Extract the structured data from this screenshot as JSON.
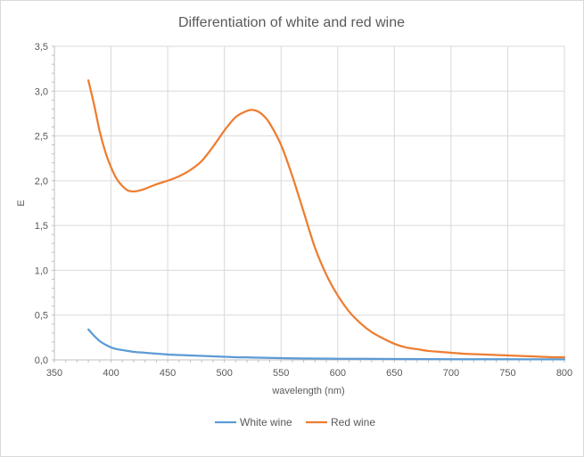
{
  "chart_data": {
    "type": "line",
    "title": "Differentiation of white and red wine",
    "xlabel": "wavelength (nm)",
    "ylabel": "E",
    "xlim": [
      350,
      800
    ],
    "ylim": [
      0,
      3.5
    ],
    "x_ticks": [
      "350",
      "400",
      "450",
      "500",
      "550",
      "600",
      "650",
      "700",
      "750",
      "800"
    ],
    "x_tick_values": [
      350,
      400,
      450,
      500,
      550,
      600,
      650,
      700,
      750,
      800
    ],
    "y_ticks": [
      "0,0",
      "0,5",
      "1,0",
      "1,5",
      "2,0",
      "2,5",
      "3,0",
      "3,5"
    ],
    "y_tick_values": [
      0,
      0.5,
      1.0,
      1.5,
      2.0,
      2.5,
      3.0,
      3.5
    ],
    "grid": true,
    "legend_position": "bottom",
    "series": [
      {
        "name": "White wine",
        "color": "#5b9bd5",
        "x": [
          380,
          385,
          390,
          395,
          400,
          405,
          410,
          420,
          430,
          440,
          450,
          460,
          470,
          480,
          490,
          500,
          510,
          520,
          530,
          540,
          550,
          560,
          570,
          580,
          600,
          620,
          650,
          700,
          750,
          800
        ],
        "y": [
          0.34,
          0.27,
          0.21,
          0.17,
          0.14,
          0.12,
          0.11,
          0.09,
          0.08,
          0.07,
          0.06,
          0.055,
          0.05,
          0.045,
          0.04,
          0.035,
          0.03,
          0.028,
          0.025,
          0.022,
          0.02,
          0.018,
          0.016,
          0.015,
          0.013,
          0.012,
          0.01,
          0.008,
          0.007,
          0.006
        ]
      },
      {
        "name": "Red wine",
        "color": "#ed7d31",
        "x": [
          380,
          385,
          390,
          395,
          400,
          405,
          410,
          415,
          420,
          425,
          430,
          440,
          450,
          460,
          470,
          480,
          490,
          500,
          510,
          520,
          525,
          530,
          535,
          540,
          550,
          560,
          570,
          580,
          590,
          600,
          610,
          620,
          630,
          640,
          650,
          660,
          670,
          680,
          690,
          700,
          710,
          720,
          730,
          740,
          750,
          760,
          770,
          780,
          790,
          800
        ],
        "y": [
          3.12,
          2.85,
          2.55,
          2.32,
          2.15,
          2.02,
          1.94,
          1.89,
          1.88,
          1.89,
          1.91,
          1.96,
          2.0,
          2.05,
          2.12,
          2.22,
          2.38,
          2.56,
          2.71,
          2.78,
          2.79,
          2.77,
          2.72,
          2.64,
          2.4,
          2.05,
          1.65,
          1.25,
          0.95,
          0.72,
          0.54,
          0.41,
          0.31,
          0.24,
          0.18,
          0.14,
          0.12,
          0.1,
          0.09,
          0.08,
          0.07,
          0.065,
          0.06,
          0.055,
          0.05,
          0.045,
          0.04,
          0.035,
          0.03,
          0.03
        ]
      }
    ]
  }
}
